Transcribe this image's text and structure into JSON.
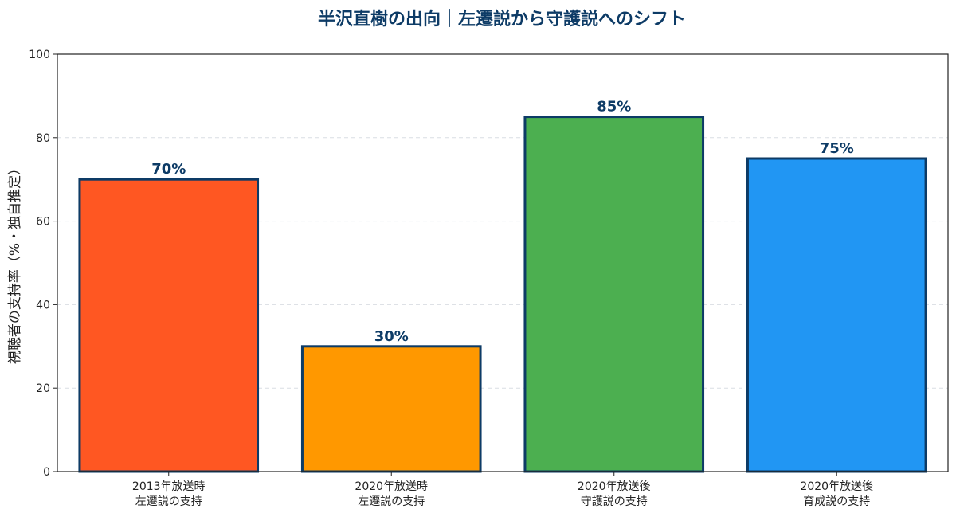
{
  "chart_data": {
    "type": "bar",
    "title": "半沢直樹の出向｜左遷説から守護説へのシフト",
    "xlabel": "",
    "ylabel": "視聴者の支持率（%・独自推定）",
    "ylim": [
      0,
      100
    ],
    "yticks": [
      "0",
      "20",
      "40",
      "60",
      "80",
      "100"
    ],
    "ytick_values": [
      0,
      20,
      40,
      60,
      80,
      100
    ],
    "grid": true,
    "categories": [
      [
        "2013年放送時",
        "左遷説の支持"
      ],
      [
        "2020年放送時",
        "左遷説の支持"
      ],
      [
        "2020年放送後",
        "守護説の支持"
      ],
      [
        "2020年放送後",
        "育成説の支持"
      ]
    ],
    "values": [
      70,
      30,
      85,
      75
    ],
    "data_labels": [
      "70%",
      "30%",
      "85%",
      "75%"
    ],
    "colors": [
      "#ff5722",
      "#ff9800",
      "#4caf50",
      "#2196f3"
    ],
    "edge_color": "#0d3b66",
    "label_color": "#0d3b66"
  }
}
